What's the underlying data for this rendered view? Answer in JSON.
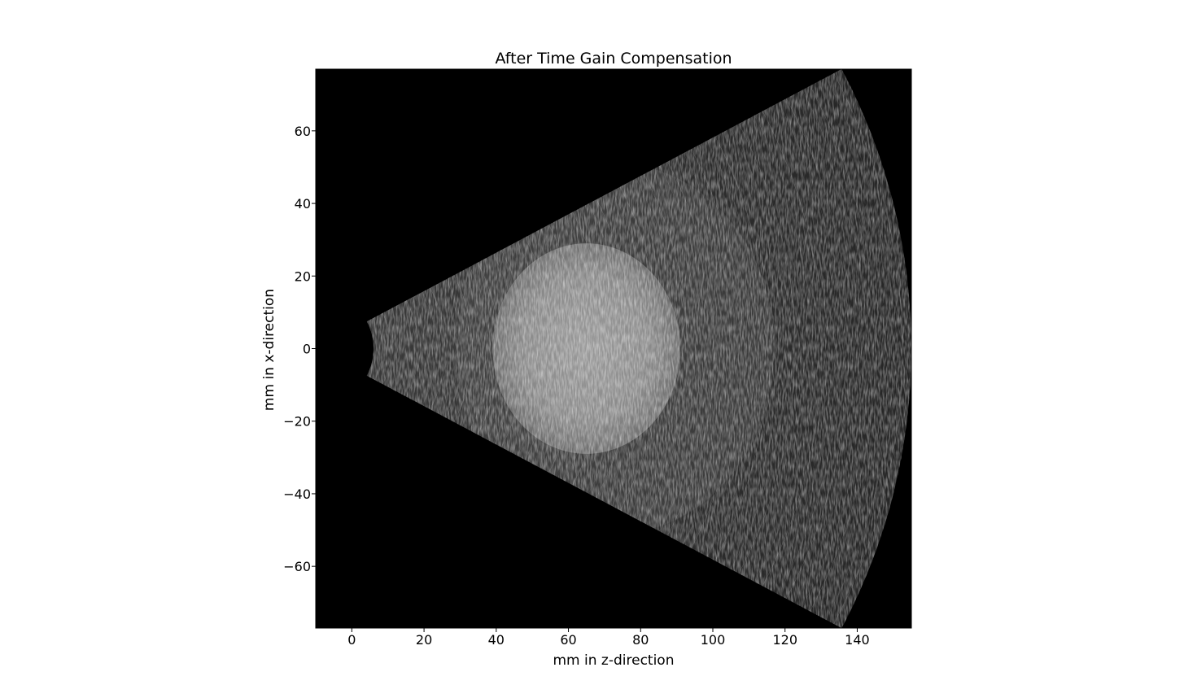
{
  "chart_data": {
    "type": "heatmap",
    "title": "After Time Gain Compensation",
    "xlabel": "mm in z-direction",
    "ylabel": "mm in x-direction",
    "xlim": [
      -10,
      155
    ],
    "ylim": [
      -77,
      77
    ],
    "xticks": [
      0,
      20,
      40,
      60,
      80,
      100,
      120,
      140
    ],
    "yticks": [
      60,
      40,
      20,
      0,
      -20,
      -40,
      -60
    ],
    "xtick_labels": [
      "0",
      "20",
      "40",
      "60",
      "80",
      "100",
      "120",
      "140"
    ],
    "ytick_labels": [
      "60",
      "40",
      "20",
      "0",
      "−20",
      "−40",
      "−60"
    ],
    "colormap": "gray",
    "background_color": "#000000",
    "sector": {
      "apex_z": -10,
      "inner_radius": 16,
      "outer_radius": 165,
      "half_angle_deg": 28
    },
    "bright_region": {
      "center_z": 65,
      "center_x": 0,
      "radius_z": 26,
      "radius_x": 29
    }
  }
}
